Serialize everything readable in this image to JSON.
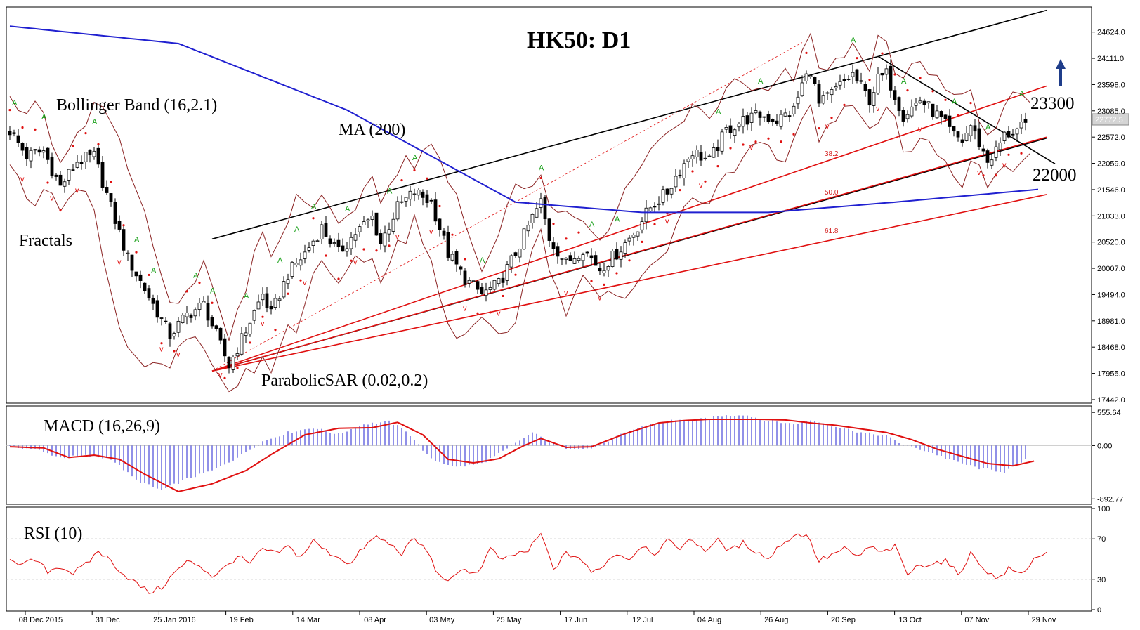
{
  "chart_title": "HK50: D1",
  "price_tag": "22772.5",
  "annotations": {
    "bollinger": "Bollinger Band (16,2.1)",
    "ma": "MA (200)",
    "fractals": "Fractals",
    "sar": "ParabolicSAR (0.02,0.2)",
    "level_high": "23300",
    "level_low": "22000",
    "fib_382": "38.2",
    "fib_50": "50.0",
    "fib_618": "61.8"
  },
  "chart_data": [
    {
      "type": "candlestick",
      "title": "HK50: D1",
      "price_axis_ticks": [
        24624.0,
        24111.0,
        23598.0,
        23085.0,
        22572.0,
        22059.0,
        21546.0,
        21033.0,
        20520.0,
        20007.0,
        19494.0,
        18981.0,
        18468.0,
        17955.0,
        17442.0
      ],
      "ylim": [
        17400,
        25100
      ],
      "date_ticks": [
        "08 Dec 2015",
        "31 Dec",
        "25 Jan 2016",
        "19 Feb",
        "14 Mar",
        "08 Apr",
        "03 May",
        "25 May",
        "17 Jun",
        "12 Jul",
        "04 Aug",
        "26 Aug",
        "20 Sep",
        "13 Oct",
        "07 Nov",
        "29 Nov"
      ],
      "close_path": [
        [
          0,
          22700
        ],
        [
          4,
          22200
        ],
        [
          8,
          22300
        ],
        [
          12,
          21600
        ],
        [
          16,
          22100
        ],
        [
          20,
          22200
        ],
        [
          24,
          21200
        ],
        [
          28,
          20200
        ],
        [
          32,
          19600
        ],
        [
          36,
          19000
        ],
        [
          38,
          18700
        ],
        [
          42,
          19100
        ],
        [
          46,
          19300
        ],
        [
          48,
          18900
        ],
        [
          52,
          18100
        ],
        [
          56,
          18800
        ],
        [
          60,
          19500
        ],
        [
          62,
          19100
        ],
        [
          66,
          19900
        ],
        [
          70,
          20300
        ],
        [
          74,
          20800
        ],
        [
          78,
          20300
        ],
        [
          82,
          20700
        ],
        [
          86,
          21000
        ],
        [
          88,
          20500
        ],
        [
          92,
          21200
        ],
        [
          96,
          21500
        ],
        [
          100,
          21300
        ],
        [
          104,
          20300
        ],
        [
          108,
          19800
        ],
        [
          112,
          19500
        ],
        [
          116,
          19700
        ],
        [
          120,
          20300
        ],
        [
          124,
          21000
        ],
        [
          126,
          21300
        ],
        [
          128,
          20600
        ],
        [
          132,
          20100
        ],
        [
          136,
          20400
        ],
        [
          140,
          20000
        ],
        [
          144,
          20300
        ],
        [
          148,
          20700
        ],
        [
          152,
          21200
        ],
        [
          156,
          21500
        ],
        [
          158,
          21800
        ],
        [
          162,
          22300
        ],
        [
          166,
          22100
        ],
        [
          170,
          22700
        ],
        [
          174,
          22900
        ],
        [
          178,
          23000
        ],
        [
          182,
          22900
        ],
        [
          186,
          23100
        ],
        [
          188,
          23600
        ],
        [
          190,
          23900
        ],
        [
          192,
          23200
        ],
        [
          196,
          23500
        ],
        [
          200,
          23800
        ],
        [
          204,
          23300
        ],
        [
          206,
          23700
        ],
        [
          208,
          23800
        ],
        [
          212,
          23000
        ],
        [
          216,
          23300
        ],
        [
          220,
          23000
        ],
        [
          224,
          22600
        ],
        [
          226,
          22500
        ],
        [
          228,
          22800
        ],
        [
          232,
          22100
        ],
        [
          234,
          22300
        ],
        [
          236,
          22600
        ],
        [
          240,
          22750
        ]
      ],
      "ma200_path": [
        [
          0,
          24740
        ],
        [
          40,
          24400
        ],
        [
          80,
          23100
        ],
        [
          120,
          21300
        ],
        [
          150,
          21100
        ],
        [
          180,
          21100
        ],
        [
          210,
          21300
        ],
        [
          244,
          21550
        ]
      ],
      "fractal_up_days": [
        1,
        8,
        20,
        30,
        34,
        44,
        48,
        56,
        64,
        68,
        72,
        80,
        90,
        96,
        112,
        126,
        138,
        144,
        168,
        178,
        200,
        212,
        224,
        232,
        240
      ],
      "fractal_down_days": [
        3,
        10,
        16,
        26,
        36,
        40,
        50,
        60,
        70,
        82,
        92,
        100,
        108,
        116,
        132,
        140,
        156,
        164,
        176,
        194,
        206,
        216,
        230,
        236
      ]
    },
    {
      "type": "bar",
      "title": "MACD (16,26,9)",
      "axis_ticks": [
        555.64,
        0.0,
        -892.77
      ],
      "ylim": [
        -960,
        640
      ],
      "histogram_path": [
        [
          0,
          -20
        ],
        [
          6,
          -60
        ],
        [
          12,
          -200
        ],
        [
          18,
          -170
        ],
        [
          24,
          -220
        ],
        [
          30,
          -580
        ],
        [
          36,
          -750
        ],
        [
          42,
          -560
        ],
        [
          48,
          -420
        ],
        [
          54,
          -200
        ],
        [
          60,
          70
        ],
        [
          66,
          220
        ],
        [
          72,
          300
        ],
        [
          78,
          190
        ],
        [
          84,
          360
        ],
        [
          90,
          400
        ],
        [
          94,
          250
        ],
        [
          100,
          -230
        ],
        [
          106,
          -360
        ],
        [
          112,
          -300
        ],
        [
          118,
          -60
        ],
        [
          124,
          220
        ],
        [
          128,
          60
        ],
        [
          132,
          -40
        ],
        [
          138,
          -50
        ],
        [
          144,
          150
        ],
        [
          150,
          320
        ],
        [
          156,
          420
        ],
        [
          162,
          420
        ],
        [
          168,
          490
        ],
        [
          174,
          520
        ],
        [
          180,
          420
        ],
        [
          186,
          360
        ],
        [
          190,
          430
        ],
        [
          196,
          320
        ],
        [
          202,
          220
        ],
        [
          208,
          160
        ],
        [
          212,
          10
        ],
        [
          218,
          -100
        ],
        [
          224,
          -260
        ],
        [
          230,
          -380
        ],
        [
          236,
          -440
        ],
        [
          242,
          -200
        ]
      ],
      "signal_path": [
        [
          0,
          -20
        ],
        [
          8,
          -40
        ],
        [
          14,
          -200
        ],
        [
          20,
          -160
        ],
        [
          26,
          -230
        ],
        [
          32,
          -480
        ],
        [
          40,
          -770
        ],
        [
          48,
          -640
        ],
        [
          56,
          -420
        ],
        [
          62,
          -150
        ],
        [
          70,
          180
        ],
        [
          78,
          290
        ],
        [
          86,
          300
        ],
        [
          92,
          390
        ],
        [
          98,
          180
        ],
        [
          104,
          -230
        ],
        [
          110,
          -290
        ],
        [
          116,
          -220
        ],
        [
          122,
          0
        ],
        [
          126,
          120
        ],
        [
          132,
          -30
        ],
        [
          138,
          -20
        ],
        [
          146,
          200
        ],
        [
          154,
          380
        ],
        [
          160,
          420
        ],
        [
          166,
          440
        ],
        [
          172,
          440
        ],
        [
          178,
          440
        ],
        [
          184,
          430
        ],
        [
          190,
          380
        ],
        [
          196,
          340
        ],
        [
          202,
          280
        ],
        [
          208,
          220
        ],
        [
          214,
          100
        ],
        [
          220,
          -60
        ],
        [
          226,
          -180
        ],
        [
          232,
          -300
        ],
        [
          238,
          -340
        ],
        [
          243,
          -260
        ]
      ]
    },
    {
      "type": "line",
      "title": "RSI (10)",
      "axis_ticks": [
        100,
        70,
        30,
        0
      ],
      "ylim": [
        0,
        100
      ],
      "rsi_path": [
        [
          0,
          52
        ],
        [
          3,
          44
        ],
        [
          6,
          49
        ],
        [
          9,
          38
        ],
        [
          12,
          43
        ],
        [
          15,
          36
        ],
        [
          18,
          44
        ],
        [
          21,
          58
        ],
        [
          24,
          48
        ],
        [
          27,
          35
        ],
        [
          30,
          26
        ],
        [
          33,
          17
        ],
        [
          36,
          22
        ],
        [
          39,
          36
        ],
        [
          42,
          47
        ],
        [
          45,
          44
        ],
        [
          48,
          33
        ],
        [
          51,
          41
        ],
        [
          54,
          53
        ],
        [
          57,
          45
        ],
        [
          60,
          60
        ],
        [
          63,
          55
        ],
        [
          66,
          62
        ],
        [
          69,
          52
        ],
        [
          72,
          68
        ],
        [
          75,
          58
        ],
        [
          78,
          52
        ],
        [
          81,
          45
        ],
        [
          84,
          62
        ],
        [
          87,
          72
        ],
        [
          90,
          65
        ],
        [
          93,
          56
        ],
        [
          96,
          70
        ],
        [
          99,
          58
        ],
        [
          102,
          32
        ],
        [
          105,
          30
        ],
        [
          108,
          40
        ],
        [
          111,
          36
        ],
        [
          114,
          60
        ],
        [
          117,
          48
        ],
        [
          120,
          55
        ],
        [
          123,
          58
        ],
        [
          126,
          75
        ],
        [
          129,
          40
        ],
        [
          132,
          55
        ],
        [
          135,
          52
        ],
        [
          138,
          36
        ],
        [
          141,
          45
        ],
        [
          144,
          56
        ],
        [
          147,
          50
        ],
        [
          150,
          64
        ],
        [
          153,
          56
        ],
        [
          156,
          67
        ],
        [
          159,
          62
        ],
        [
          162,
          69
        ],
        [
          165,
          59
        ],
        [
          168,
          68
        ],
        [
          171,
          58
        ],
        [
          174,
          66
        ],
        [
          177,
          58
        ],
        [
          180,
          50
        ],
        [
          183,
          65
        ],
        [
          186,
          73
        ],
        [
          189,
          75
        ],
        [
          192,
          48
        ],
        [
          195,
          54
        ],
        [
          198,
          60
        ],
        [
          201,
          52
        ],
        [
          204,
          62
        ],
        [
          207,
          56
        ],
        [
          210,
          62
        ],
        [
          213,
          35
        ],
        [
          216,
          44
        ],
        [
          219,
          46
        ],
        [
          222,
          48
        ],
        [
          225,
          35
        ],
        [
          228,
          55
        ],
        [
          231,
          42
        ],
        [
          234,
          30
        ],
        [
          237,
          40
        ],
        [
          240,
          35
        ],
        [
          243,
          50
        ],
        [
          246,
          58
        ]
      ]
    }
  ]
}
